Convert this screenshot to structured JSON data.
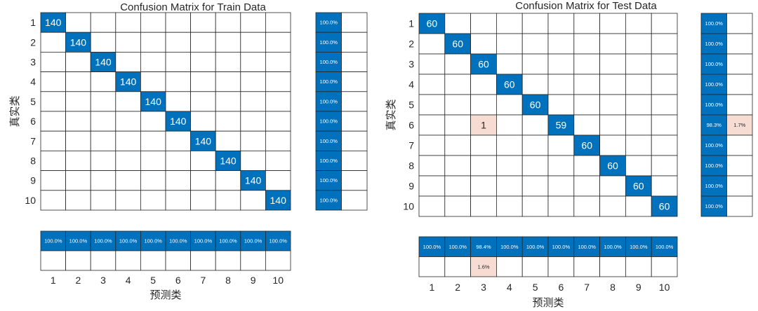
{
  "colors": {
    "correct": "#0072BD",
    "wrong": "#F6DCD2",
    "grid": "#262626",
    "text_dark": "#262626",
    "text_light": "#ffffff"
  },
  "chart_data": [
    {
      "type": "heatmap",
      "title": "Confusion Matrix for Train Data",
      "ylabel": "真实类",
      "xlabel": "预测类",
      "classes": [
        "1",
        "2",
        "3",
        "4",
        "5",
        "6",
        "7",
        "8",
        "9",
        "10"
      ],
      "matrix": [
        [
          140,
          0,
          0,
          0,
          0,
          0,
          0,
          0,
          0,
          0
        ],
        [
          0,
          140,
          0,
          0,
          0,
          0,
          0,
          0,
          0,
          0
        ],
        [
          0,
          0,
          140,
          0,
          0,
          0,
          0,
          0,
          0,
          0
        ],
        [
          0,
          0,
          0,
          140,
          0,
          0,
          0,
          0,
          0,
          0
        ],
        [
          0,
          0,
          0,
          0,
          140,
          0,
          0,
          0,
          0,
          0
        ],
        [
          0,
          0,
          0,
          0,
          0,
          140,
          0,
          0,
          0,
          0
        ],
        [
          0,
          0,
          0,
          0,
          0,
          0,
          140,
          0,
          0,
          0
        ],
        [
          0,
          0,
          0,
          0,
          0,
          0,
          0,
          140,
          0,
          0
        ],
        [
          0,
          0,
          0,
          0,
          0,
          0,
          0,
          0,
          140,
          0
        ],
        [
          0,
          0,
          0,
          0,
          0,
          0,
          0,
          0,
          0,
          140
        ]
      ],
      "row_summary": [
        [
          "100.0%",
          ""
        ],
        [
          "100.0%",
          ""
        ],
        [
          "100.0%",
          ""
        ],
        [
          "100.0%",
          ""
        ],
        [
          "100.0%",
          ""
        ],
        [
          "100.0%",
          ""
        ],
        [
          "100.0%",
          ""
        ],
        [
          "100.0%",
          ""
        ],
        [
          "100.0%",
          ""
        ],
        [
          "100.0%",
          ""
        ]
      ],
      "col_summary_correct": [
        "100.0%",
        "100.0%",
        "100.0%",
        "100.0%",
        "100.0%",
        "100.0%",
        "100.0%",
        "100.0%",
        "100.0%",
        "100.0%"
      ],
      "col_summary_wrong": [
        "",
        "",
        "",
        "",
        "",
        "",
        "",
        "",
        "",
        ""
      ]
    },
    {
      "type": "heatmap",
      "title": "Confusion Matrix for Test Data",
      "ylabel": "真实类",
      "xlabel": "预测类",
      "classes": [
        "1",
        "2",
        "3",
        "4",
        "5",
        "6",
        "7",
        "8",
        "9",
        "10"
      ],
      "matrix": [
        [
          60,
          0,
          0,
          0,
          0,
          0,
          0,
          0,
          0,
          0
        ],
        [
          0,
          60,
          0,
          0,
          0,
          0,
          0,
          0,
          0,
          0
        ],
        [
          0,
          0,
          60,
          0,
          0,
          0,
          0,
          0,
          0,
          0
        ],
        [
          0,
          0,
          0,
          60,
          0,
          0,
          0,
          0,
          0,
          0
        ],
        [
          0,
          0,
          0,
          0,
          60,
          0,
          0,
          0,
          0,
          0
        ],
        [
          0,
          0,
          1,
          0,
          0,
          59,
          0,
          0,
          0,
          0
        ],
        [
          0,
          0,
          0,
          0,
          0,
          0,
          60,
          0,
          0,
          0
        ],
        [
          0,
          0,
          0,
          0,
          0,
          0,
          0,
          60,
          0,
          0
        ],
        [
          0,
          0,
          0,
          0,
          0,
          0,
          0,
          0,
          60,
          0
        ],
        [
          0,
          0,
          0,
          0,
          0,
          0,
          0,
          0,
          0,
          60
        ]
      ],
      "row_summary": [
        [
          "100.0%",
          ""
        ],
        [
          "100.0%",
          ""
        ],
        [
          "100.0%",
          ""
        ],
        [
          "100.0%",
          ""
        ],
        [
          "100.0%",
          ""
        ],
        [
          "98.3%",
          "1.7%"
        ],
        [
          "100.0%",
          ""
        ],
        [
          "100.0%",
          ""
        ],
        [
          "100.0%",
          ""
        ],
        [
          "100.0%",
          ""
        ]
      ],
      "col_summary_correct": [
        "100.0%",
        "100.0%",
        "98.4%",
        "100.0%",
        "100.0%",
        "100.0%",
        "100.0%",
        "100.0%",
        "100.0%",
        "100.0%"
      ],
      "col_summary_wrong": [
        "",
        "",
        "1.6%",
        "",
        "",
        "",
        "",
        "",
        "",
        ""
      ]
    }
  ]
}
